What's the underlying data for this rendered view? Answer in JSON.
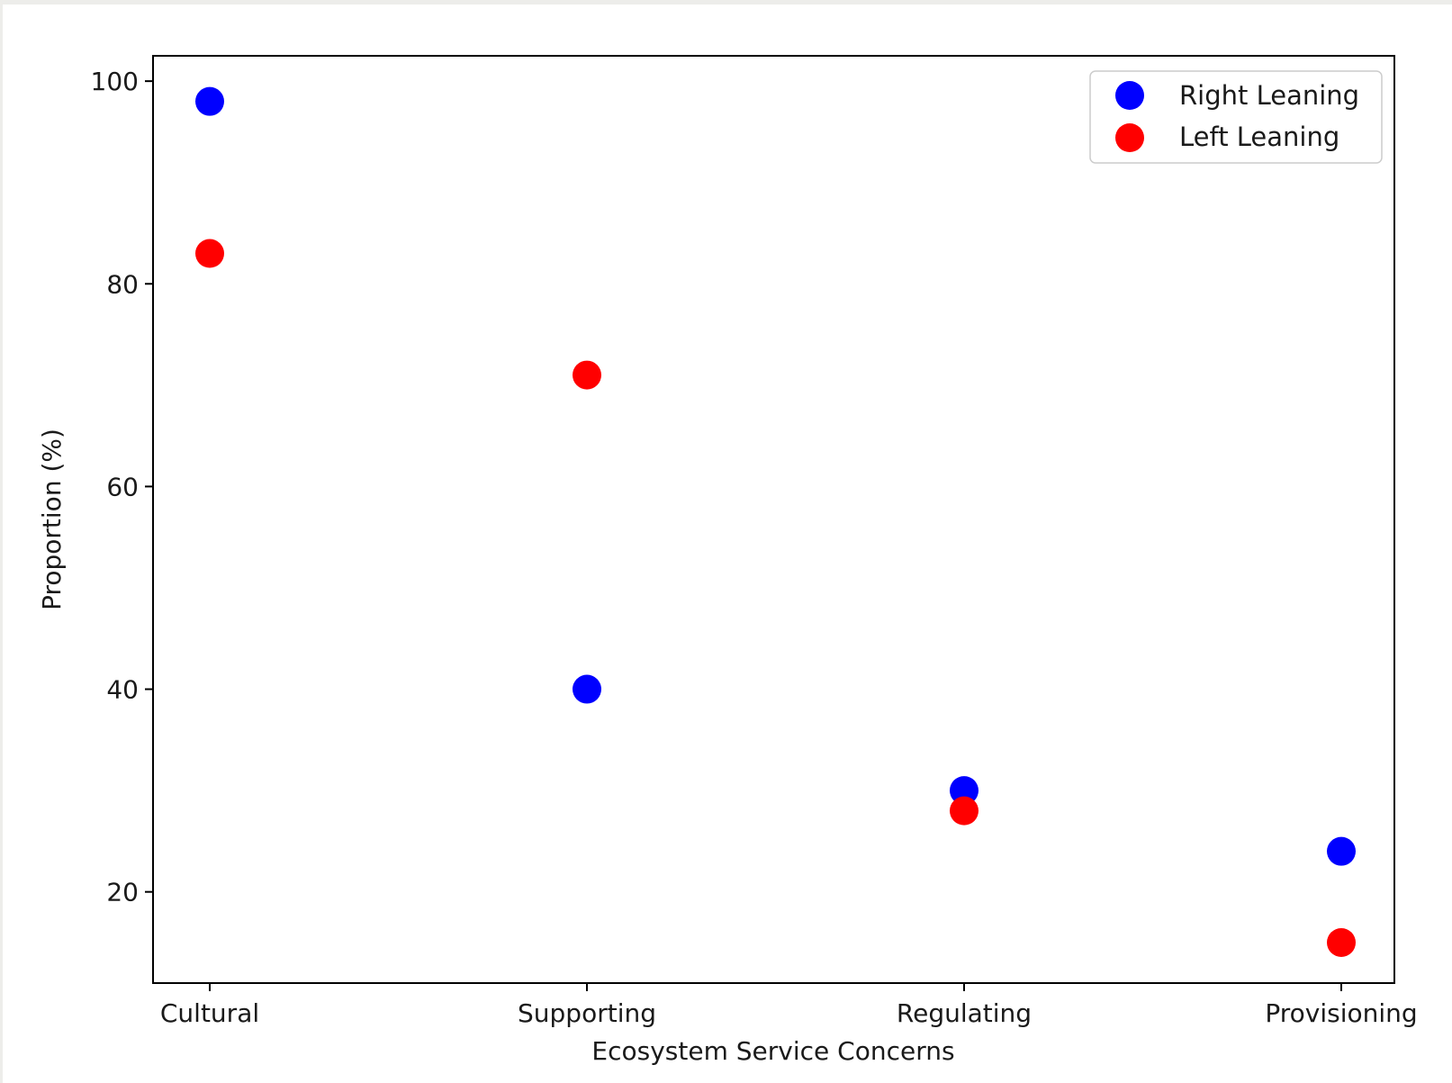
{
  "chart_data": {
    "type": "scatter",
    "title": "",
    "xlabel": "Ecosystem Service Concerns",
    "ylabel": "Proportion (%)",
    "categories": [
      "Cultural",
      "Supporting",
      "Regulating",
      "Provisioning"
    ],
    "ylim": [
      11,
      102.5
    ],
    "yticks": [
      20,
      40,
      60,
      80,
      100
    ],
    "grid": false,
    "legend_position": "top-right",
    "series": [
      {
        "name": "Right Leaning",
        "color": "#0000ff",
        "values": [
          98,
          40,
          30,
          24
        ]
      },
      {
        "name": "Left Leaning",
        "color": "#ff0000",
        "values": [
          83,
          71,
          28,
          15
        ]
      }
    ]
  }
}
